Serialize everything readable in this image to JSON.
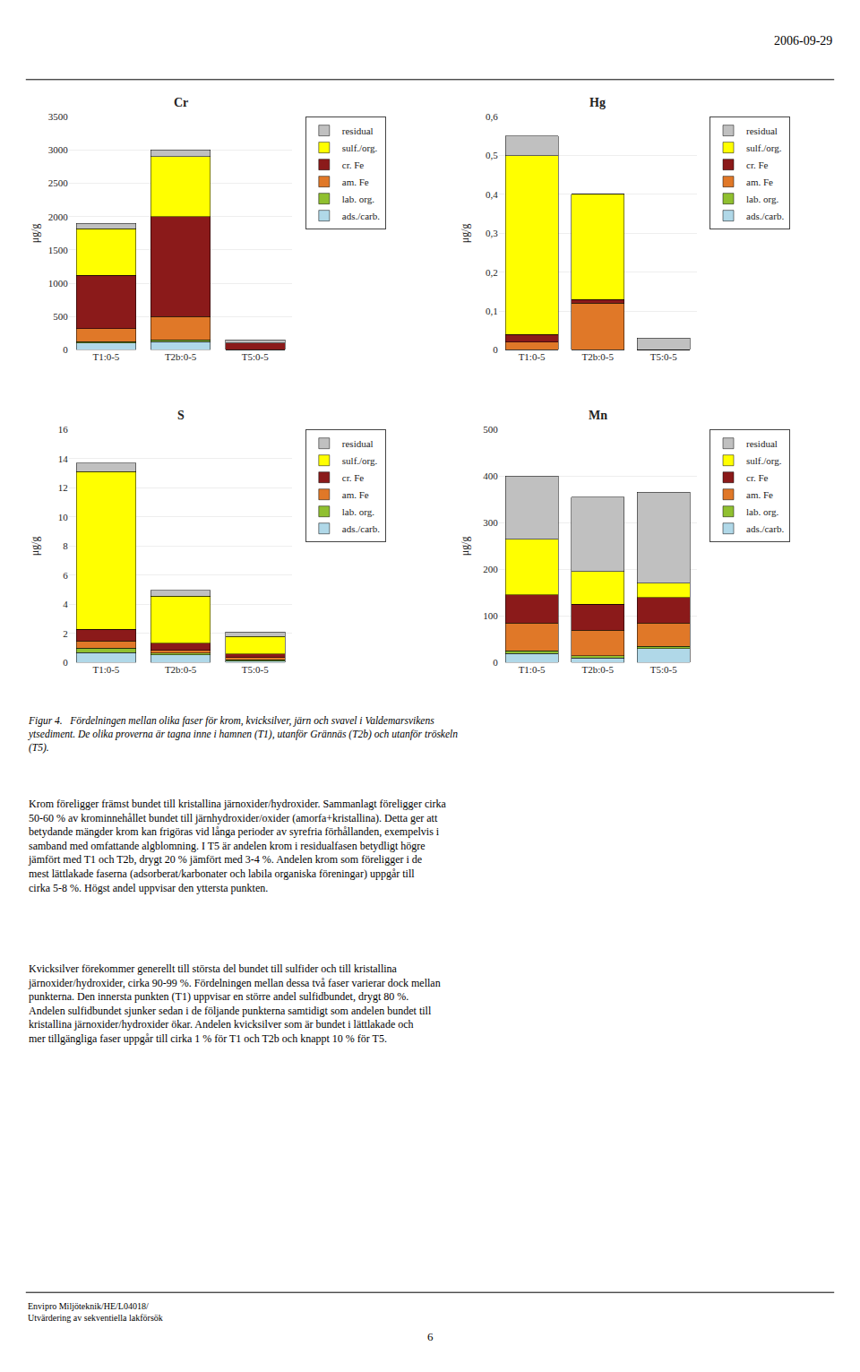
{
  "chart_data": [
    {
      "type": "bar",
      "title": "Cr",
      "ylabel": "μg/g",
      "stacked": true,
      "grid": true,
      "legend": "right",
      "categories": [
        "T1:0-5",
        "T2b:0-5",
        "T5:0-5"
      ],
      "ylim": [
        0,
        3500
      ],
      "yticks": [
        0,
        500,
        1000,
        1500,
        2000,
        2500,
        3000,
        3500
      ],
      "series": [
        {
          "name": "ads./carb.",
          "color": "#b0d8e8",
          "values": [
            100,
            120,
            0
          ]
        },
        {
          "name": "lab. org.",
          "color": "#90c030",
          "values": [
            20,
            30,
            0
          ]
        },
        {
          "name": "am. Fe",
          "color": "#e07828",
          "values": [
            200,
            350,
            0
          ]
        },
        {
          "name": "cr. Fe",
          "color": "#8b1a1a",
          "values": [
            800,
            1500,
            100
          ]
        },
        {
          "name": "sulf./org.",
          "color": "#ffff00",
          "values": [
            700,
            900,
            0
          ]
        },
        {
          "name": "residual",
          "color": "#c0c0c0",
          "values": [
            80,
            100,
            50
          ]
        }
      ]
    },
    {
      "type": "bar",
      "title": "Hg",
      "ylabel": "μg/g",
      "stacked": true,
      "grid": true,
      "legend": "right",
      "categories": [
        "T1:0-5",
        "T2b:0-5",
        "T5:0-5"
      ],
      "ylim": [
        0,
        0.6
      ],
      "yticks": [
        0,
        {
          "value": 0.1,
          "label": "0,1"
        },
        {
          "value": 0.2,
          "label": "0,2"
        },
        {
          "value": 0.3,
          "label": "0,3"
        },
        {
          "value": 0.4,
          "label": "0,4"
        },
        {
          "value": 0.5,
          "label": "0,5"
        },
        {
          "value": 0.6,
          "label": "0,6"
        }
      ],
      "series": [
        {
          "name": "ads./carb.",
          "color": "#b0d8e8",
          "values": [
            0.0,
            0.0,
            0.0
          ]
        },
        {
          "name": "lab. org.",
          "color": "#90c030",
          "values": [
            0.0,
            0.0,
            0.0
          ]
        },
        {
          "name": "am. Fe",
          "color": "#e07828",
          "values": [
            0.02,
            0.12,
            0.0
          ]
        },
        {
          "name": "cr. Fe",
          "color": "#8b1a1a",
          "values": [
            0.02,
            0.01,
            0.0
          ]
        },
        {
          "name": "sulf./org.",
          "color": "#ffff00",
          "values": [
            0.46,
            0.27,
            0.0
          ]
        },
        {
          "name": "residual",
          "color": "#c0c0c0",
          "values": [
            0.05,
            0.0,
            0.03
          ]
        }
      ]
    },
    {
      "type": "bar",
      "title": "S",
      "ylabel": "μg/g",
      "stacked": true,
      "grid": true,
      "legend": "right",
      "categories": [
        "T1:0-5",
        "T2b:0-5",
        "T5:0-5"
      ],
      "ylim": [
        0,
        16
      ],
      "yticks": [
        0,
        2,
        4,
        6,
        8,
        10,
        12,
        14,
        16
      ],
      "series": [
        {
          "name": "ads./carb.",
          "color": "#b0d8e8",
          "values": [
            0.7,
            0.55,
            0.1
          ]
        },
        {
          "name": "lab. org.",
          "color": "#90c030",
          "values": [
            0.3,
            0.1,
            0.1
          ]
        },
        {
          "name": "am. Fe",
          "color": "#e07828",
          "values": [
            0.5,
            0.2,
            0.15
          ]
        },
        {
          "name": "cr. Fe",
          "color": "#8b1a1a",
          "values": [
            0.8,
            0.5,
            0.25
          ]
        },
        {
          "name": "sulf./org.",
          "color": "#ffff00",
          "values": [
            10.8,
            3.2,
            1.2
          ]
        },
        {
          "name": "residual",
          "color": "#c0c0c0",
          "values": [
            0.6,
            0.4,
            0.3
          ]
        }
      ]
    },
    {
      "type": "bar",
      "title": "Mn",
      "ylabel": "μg/g",
      "stacked": true,
      "grid": true,
      "legend": "right",
      "categories": [
        "T1:0-5",
        "T2b:0-5",
        "T5:0-5"
      ],
      "ylim": [
        0,
        500
      ],
      "yticks": [
        0,
        100,
        200,
        300,
        400,
        500
      ],
      "series": [
        {
          "name": "ads./carb.",
          "color": "#b0d8e8",
          "values": [
            20,
            10,
            30
          ]
        },
        {
          "name": "lab. org.",
          "color": "#90c030",
          "values": [
            5,
            5,
            5
          ]
        },
        {
          "name": "am. Fe",
          "color": "#e07828",
          "values": [
            60,
            55,
            50
          ]
        },
        {
          "name": "cr. Fe",
          "color": "#8b1a1a",
          "values": [
            60,
            55,
            55
          ]
        },
        {
          "name": "sulf./org.",
          "color": "#ffff00",
          "values": [
            120,
            70,
            30
          ]
        },
        {
          "name": "residual",
          "color": "#c0c0c0",
          "values": [
            135,
            160,
            195
          ]
        }
      ]
    }
  ],
  "annotations": [
    "2006-09-29",
    "Figur 4.  Fördelningen mellan olika faser för krom, kvicksilver, järn och svavel i Valdemarsvikens\nytsediment. De olika proverna är tagna inne i hamnen (T1), utanför Grännäs (T2b) och utanför tröskeln\n(T5).",
    "Krom föreligger främst bundet till kristallina järnoxider/hydroxider. Sammanlagt föreligger cirka\n50-60 % av krominnehållet bundet till järnhydroxider/oxider (amorfa+kristallina). Detta ger att\nbetydande mängder krom kan frigöras vid långa perioder av syrefria förhållanden, exempelvis i\nsamband med omfattande algblomning. I T5 är andelen krom i residualfasen betydligt högre\njämfört med T1 och T2b, drygt 20 % jämfört med 3-4 %. Andelen krom som föreligger i de\nmest lättlakade faserna (adsorberat/karbonater och labila organiska föreningar) uppgår till\ncirka 5-8 %. Högst andel uppvisar den yttersta punkten.",
    "Kvicksilver förekommer generellt till största del bundet till sulfider och till kristallina\njärnoxider/hydroxider, cirka 90-99 %. Fördelningen mellan dessa två faser varierar dock mellan\npunkterna. Den innersta punkten (T1) uppvisar en större andel sulfidbundet, drygt 80 %.\nAndelen sulfidbundet sjunker sedan i de följande punkterna samtidigt som andelen bundet till\nkristallina järnoxider/hydroxider ökar. Andelen kvicksilver som är bundet i lättlakade och\nmer tillgängliga faser uppgår till cirka 1 % för T1 och T2b och knappt 10 % för T5.",
    "Envipro Miljöteknik/HE/L04018/\nUtvärdering av sekventiella lakförsök",
    "6"
  ]
}
